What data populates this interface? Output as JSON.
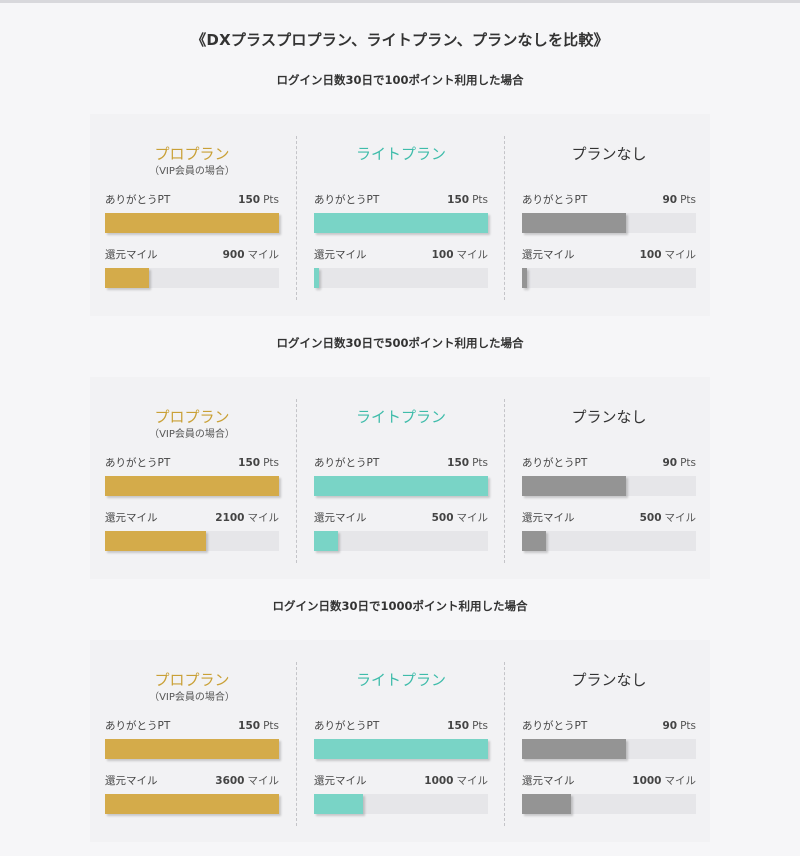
{
  "title": "《DXプラスプロプラン、ライトプラン、プランなしを比較》",
  "colors": {
    "pro": "#d4ab4a",
    "lite": "#79d4c6",
    "none": "#949494",
    "pro_text": "#c9a036",
    "lite_text": "#3fbcaa",
    "none_text": "#333333"
  },
  "scenarios": [
    {
      "title": "ログイン日数30日で100ポイント利用した場合",
      "plans": [
        {
          "name": "プロプラン",
          "sub": "（VIP会員の場合）",
          "pt_label": "ありがとうPT",
          "pt_value": "150",
          "pt_unit": "Pts",
          "pt_fill": 1.0,
          "mile_label": "還元マイル",
          "mile_value": "900",
          "mile_unit": "マイル",
          "mile_fill": 0.25
        },
        {
          "name": "ライトプラン",
          "sub": "",
          "pt_label": "ありがとうPT",
          "pt_value": "150",
          "pt_unit": "Pts",
          "pt_fill": 1.0,
          "mile_label": "還元マイル",
          "mile_value": "100",
          "mile_unit": "マイル",
          "mile_fill": 0.03
        },
        {
          "name": "プランなし",
          "sub": "",
          "pt_label": "ありがとうPT",
          "pt_value": "90",
          "pt_unit": "Pts",
          "pt_fill": 0.6,
          "mile_label": "還元マイル",
          "mile_value": "100",
          "mile_unit": "マイル",
          "mile_fill": 0.03
        }
      ]
    },
    {
      "title": "ログイン日数30日で500ポイント利用した場合",
      "plans": [
        {
          "name": "プロプラン",
          "sub": "（VIP会員の場合）",
          "pt_label": "ありがとうPT",
          "pt_value": "150",
          "pt_unit": "Pts",
          "pt_fill": 1.0,
          "mile_label": "還元マイル",
          "mile_value": "2100",
          "mile_unit": "マイル",
          "mile_fill": 0.58
        },
        {
          "name": "ライトプラン",
          "sub": "",
          "pt_label": "ありがとうPT",
          "pt_value": "150",
          "pt_unit": "Pts",
          "pt_fill": 1.0,
          "mile_label": "還元マイル",
          "mile_value": "500",
          "mile_unit": "マイル",
          "mile_fill": 0.14
        },
        {
          "name": "プランなし",
          "sub": "",
          "pt_label": "ありがとうPT",
          "pt_value": "90",
          "pt_unit": "Pts",
          "pt_fill": 0.6,
          "mile_label": "還元マイル",
          "mile_value": "500",
          "mile_unit": "マイル",
          "mile_fill": 0.14
        }
      ]
    },
    {
      "title": "ログイン日数30日で1000ポイント利用した場合",
      "plans": [
        {
          "name": "プロプラン",
          "sub": "（VIP会員の場合）",
          "pt_label": "ありがとうPT",
          "pt_value": "150",
          "pt_unit": "Pts",
          "pt_fill": 1.0,
          "mile_label": "還元マイル",
          "mile_value": "3600",
          "mile_unit": "マイル",
          "mile_fill": 1.0
        },
        {
          "name": "ライトプラン",
          "sub": "",
          "pt_label": "ありがとうPT",
          "pt_value": "150",
          "pt_unit": "Pts",
          "pt_fill": 1.0,
          "mile_label": "還元マイル",
          "mile_value": "1000",
          "mile_unit": "マイル",
          "mile_fill": 0.28
        },
        {
          "name": "プランなし",
          "sub": "",
          "pt_label": "ありがとうPT",
          "pt_value": "90",
          "pt_unit": "Pts",
          "pt_fill": 0.6,
          "mile_label": "還元マイル",
          "mile_value": "1000",
          "mile_unit": "マイル",
          "mile_fill": 0.28
        }
      ]
    }
  ]
}
